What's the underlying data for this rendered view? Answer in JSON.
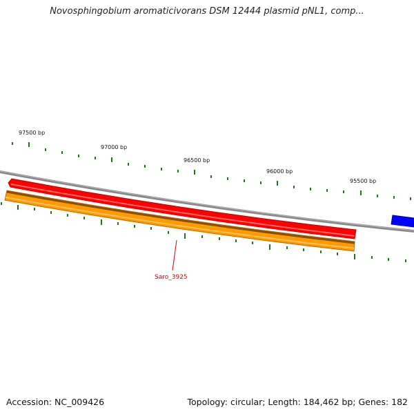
{
  "title": "Novosphingobium aromaticivorans DSM 12444 plasmid pNL1, comp...",
  "footer": {
    "accession": "Accession: NC_009426",
    "summary": "Topology: circular; Length: 184,462 bp; Genes: 182"
  },
  "scale_labels": [
    "97500 bp",
    "97000 bp",
    "96500 bp",
    "96000 bp",
    "95500 bp"
  ],
  "features": [
    {
      "type": "gene",
      "color": "#ff0000"
    },
    {
      "type": "cds",
      "label": "Saro_3925",
      "color": "#ff9a00",
      "label_color": "#cc0000"
    },
    {
      "type": "gene",
      "color": "#0000ff"
    }
  ],
  "colors": {
    "backbone": "#888888",
    "tick": "#1a7a1a"
  }
}
